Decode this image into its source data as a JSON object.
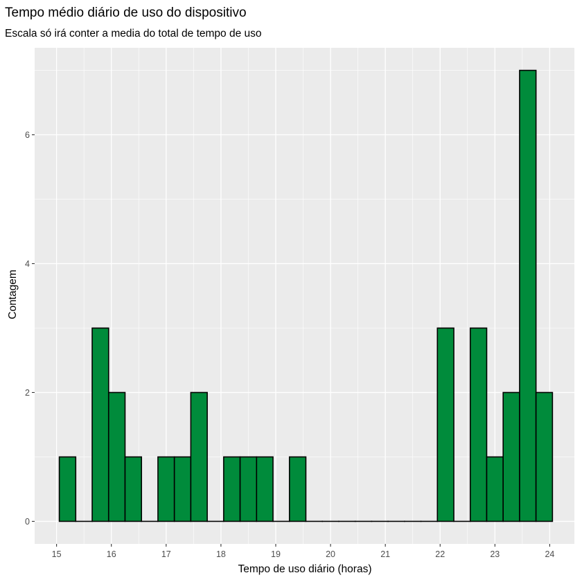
{
  "chart_data": {
    "type": "bar",
    "title": "Tempo médio diário de uso do dispositivo",
    "subtitle": "Escala só irá conter a media do total de tempo de uso",
    "xlabel": "Tempo de uso diário (horas)",
    "ylabel": "Contagem",
    "xlim": [
      14.6,
      24.45
    ],
    "ylim": [
      -0.35,
      7.35
    ],
    "bin_width": 0.3,
    "bin_centers": [
      15.2,
      15.5,
      15.8,
      16.1,
      16.4,
      16.7,
      17.0,
      17.3,
      17.6,
      17.9,
      18.2,
      18.5,
      18.8,
      19.1,
      19.4,
      19.7,
      20.0,
      20.3,
      20.6,
      20.9,
      21.2,
      21.5,
      21.8,
      22.1,
      22.4,
      22.7,
      23.0,
      23.3,
      23.6,
      23.9
    ],
    "values": [
      1,
      0,
      3,
      2,
      1,
      0,
      1,
      1,
      2,
      0,
      1,
      1,
      1,
      0,
      1,
      0,
      0,
      0,
      0,
      0,
      0,
      0,
      0,
      3,
      0,
      3,
      1,
      2,
      7,
      2
    ],
    "x_ticks": [
      15,
      16,
      17,
      18,
      19,
      20,
      21,
      22,
      23,
      24
    ],
    "x_tick_labels": [
      "15",
      "16",
      "17",
      "18",
      "19",
      "20",
      "21",
      "22",
      "23",
      "24"
    ],
    "y_ticks": [
      0,
      2,
      4,
      6
    ],
    "y_tick_labels": [
      "0",
      "2",
      "4",
      "6"
    ],
    "grid": true,
    "colors": {
      "panel": "#ebebeb",
      "grid": "#ffffff",
      "bar_fill": "#008b3b",
      "bar_stroke": "#000000"
    }
  }
}
